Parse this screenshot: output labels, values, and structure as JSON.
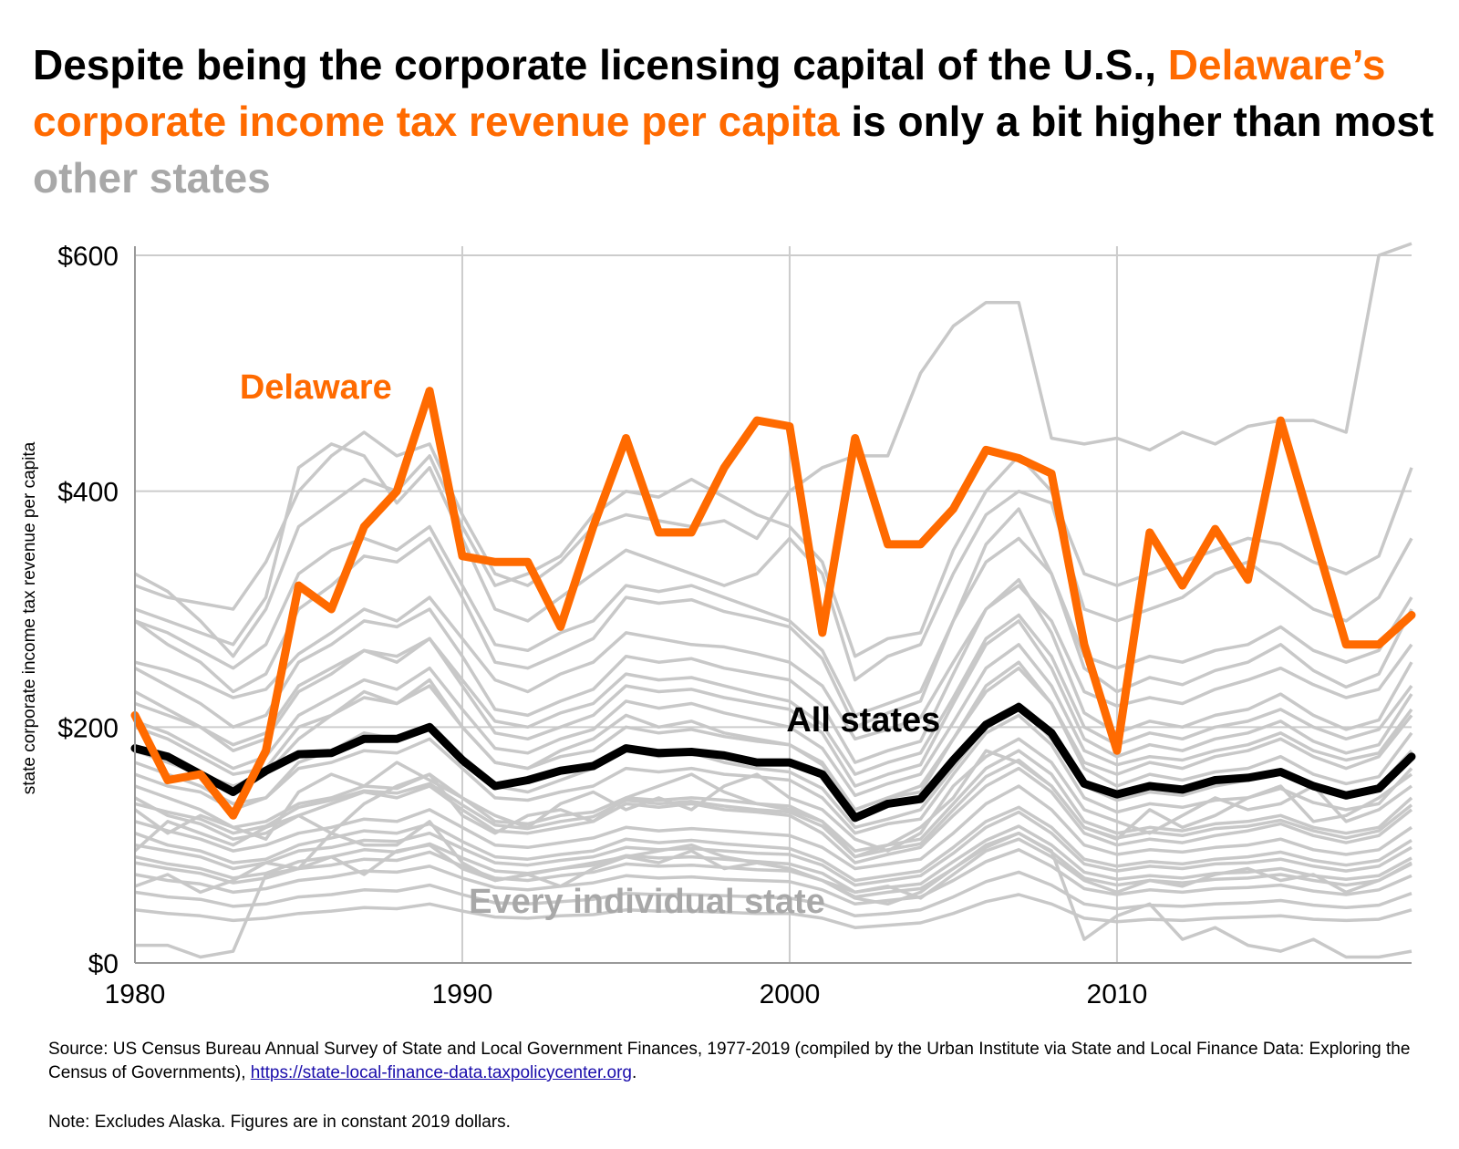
{
  "title": {
    "part1": "Despite being the corporate licensing capital of the U.S., ",
    "part2": "Delaware’s corporate income tax revenue per capita",
    "part3": " is only a bit higher than most ",
    "part4": "other states"
  },
  "colors": {
    "delaware": "#ff6a00",
    "all_states": "#000000",
    "other_states": "#c8c8c8",
    "highlight_gray": "#a8a8a8",
    "grid": "#cccccc"
  },
  "chart_data": {
    "type": "line",
    "ylabel": "state corporate income tax revenue per capita",
    "xlim": [
      1980,
      2019
    ],
    "ylim": [
      0,
      600
    ],
    "x_ticks": [
      "1980",
      "1990",
      "2000",
      "2010"
    ],
    "y_ticks": [
      "$0",
      "$200",
      "$400",
      "$600"
    ],
    "grid": true,
    "annotations": [
      {
        "text": "Delaware",
        "series": "Delaware"
      },
      {
        "text": "All states",
        "series": "All states"
      },
      {
        "text": "Every individual state",
        "series": "individual states"
      }
    ],
    "x": [
      1980,
      1981,
      1982,
      1983,
      1984,
      1985,
      1986,
      1987,
      1988,
      1989,
      1990,
      1991,
      1992,
      1993,
      1994,
      1995,
      1996,
      1997,
      1998,
      1999,
      2000,
      2001,
      2002,
      2003,
      2004,
      2005,
      2006,
      2007,
      2008,
      2009,
      2010,
      2011,
      2012,
      2013,
      2014,
      2015,
      2016,
      2017,
      2018,
      2019
    ],
    "series": [
      {
        "name": "Delaware",
        "values": [
          210,
          155,
          160,
          125,
          180,
          320,
          300,
          370,
          400,
          485,
          345,
          340,
          340,
          285,
          370,
          445,
          365,
          365,
          420,
          460,
          455,
          280,
          445,
          355,
          355,
          385,
          435,
          428,
          415,
          270,
          180,
          365,
          320,
          368,
          325,
          460,
          365,
          270,
          270,
          295
        ]
      },
      {
        "name": "All states",
        "values": [
          182,
          175,
          160,
          145,
          163,
          177,
          178,
          190,
          190,
          200,
          172,
          150,
          155,
          163,
          167,
          182,
          178,
          179,
          176,
          170,
          170,
          160,
          123,
          135,
          139,
          172,
          202,
          217,
          195,
          152,
          143,
          150,
          147,
          155,
          157,
          162,
          150,
          142,
          148,
          175
        ]
      }
    ],
    "background_series": [
      [
        150,
        140,
        130,
        115,
        120,
        135,
        140,
        150,
        148,
        160,
        140,
        120,
        118,
        125,
        128,
        140,
        138,
        140,
        138,
        135,
        133,
        120,
        95,
        100,
        105,
        135,
        165,
        180,
        160,
        120,
        110,
        115,
        112,
        118,
        120,
        125,
        115,
        110,
        115,
        140
      ],
      [
        120,
        112,
        105,
        95,
        100,
        110,
        115,
        122,
        120,
        130,
        115,
        100,
        98,
        102,
        106,
        115,
        112,
        114,
        112,
        110,
        108,
        98,
        80,
        84,
        88,
        110,
        135,
        150,
        130,
        100,
        92,
        96,
        94,
        98,
        100,
        105,
        96,
        92,
        96,
        115
      ],
      [
        100,
        95,
        90,
        80,
        85,
        95,
        98,
        104,
        103,
        110,
        97,
        85,
        83,
        87,
        90,
        98,
        96,
        97,
        95,
        93,
        92,
        83,
        66,
        70,
        74,
        93,
        115,
        128,
        110,
        84,
        78,
        82,
        80,
        84,
        85,
        88,
        82,
        78,
        82,
        98
      ],
      [
        85,
        80,
        76,
        68,
        72,
        80,
        83,
        88,
        87,
        94,
        82,
        72,
        70,
        74,
        77,
        84,
        82,
        83,
        81,
        79,
        78,
        70,
        56,
        60,
        63,
        80,
        98,
        110,
        94,
        72,
        66,
        70,
        68,
        71,
        72,
        75,
        70,
        66,
        70,
        84
      ],
      [
        170,
        160,
        150,
        135,
        140,
        165,
        170,
        180,
        178,
        190,
        165,
        140,
        138,
        145,
        150,
        165,
        162,
        165,
        160,
        158,
        155,
        140,
        110,
        118,
        122,
        160,
        195,
        210,
        185,
        140,
        128,
        135,
        132,
        138,
        140,
        148,
        136,
        130,
        135,
        165
      ],
      [
        200,
        190,
        175,
        160,
        165,
        200,
        210,
        225,
        220,
        235,
        200,
        170,
        165,
        175,
        180,
        200,
        195,
        198,
        192,
        188,
        185,
        168,
        130,
        140,
        145,
        190,
        235,
        255,
        220,
        165,
        150,
        160,
        155,
        162,
        165,
        175,
        160,
        152,
        158,
        195
      ],
      [
        230,
        215,
        200,
        180,
        190,
        230,
        245,
        265,
        260,
        275,
        235,
        195,
        190,
        200,
        210,
        235,
        230,
        232,
        225,
        220,
        215,
        195,
        150,
        160,
        168,
        220,
        270,
        290,
        250,
        190,
        175,
        185,
        180,
        190,
        195,
        205,
        188,
        178,
        185,
        228
      ],
      [
        140,
        125,
        118,
        105,
        110,
        125,
        135,
        145,
        140,
        150,
        130,
        112,
        110,
        115,
        120,
        135,
        132,
        135,
        130,
        128,
        125,
        110,
        85,
        92,
        98,
        125,
        150,
        165,
        145,
        110,
        100,
        105,
        102,
        108,
        112,
        118,
        108,
        102,
        108,
        130
      ],
      [
        110,
        100,
        95,
        85,
        88,
        100,
        106,
        112,
        110,
        118,
        103,
        90,
        88,
        92,
        95,
        105,
        102,
        104,
        101,
        99,
        97,
        87,
        70,
        74,
        78,
        98,
        120,
        132,
        115,
        88,
        82,
        86,
        84,
        88,
        90,
        94,
        87,
        83,
        87,
        104
      ],
      [
        75,
        70,
        67,
        60,
        63,
        70,
        73,
        78,
        77,
        82,
        72,
        64,
        62,
        65,
        68,
        74,
        72,
        73,
        71,
        70,
        69,
        62,
        50,
        53,
        56,
        70,
        86,
        96,
        82,
        63,
        58,
        62,
        60,
        63,
        64,
        66,
        61,
        58,
        62,
        74
      ],
      [
        60,
        56,
        54,
        48,
        50,
        56,
        58,
        62,
        61,
        66,
        58,
        51,
        50,
        52,
        54,
        59,
        58,
        58,
        57,
        56,
        55,
        50,
        40,
        42,
        45,
        56,
        69,
        77,
        66,
        50,
        46,
        49,
        48,
        50,
        51,
        53,
        49,
        47,
        49,
        59
      ],
      [
        250,
        235,
        220,
        200,
        210,
        255,
        270,
        290,
        285,
        300,
        260,
        215,
        210,
        222,
        232,
        260,
        255,
        258,
        250,
        245,
        240,
        218,
        170,
        180,
        188,
        245,
        300,
        325,
        280,
        212,
        195,
        205,
        200,
        210,
        215,
        228,
        210,
        198,
        206,
        255
      ],
      [
        290,
        270,
        255,
        230,
        245,
        300,
        320,
        345,
        340,
        360,
        310,
        255,
        250,
        262,
        275,
        310,
        305,
        308,
        298,
        292,
        285,
        258,
        200,
        212,
        222,
        290,
        355,
        385,
        330,
        250,
        230,
        242,
        236,
        248,
        255,
        270,
        248,
        234,
        245,
        300
      ],
      [
        95,
        120,
        110,
        100,
        115,
        125,
        110,
        135,
        150,
        160,
        125,
        110,
        125,
        130,
        120,
        140,
        150,
        160,
        145,
        135,
        130,
        120,
        90,
        100,
        115,
        140,
        180,
        170,
        150,
        115,
        105,
        130,
        115,
        125,
        140,
        150,
        120,
        125,
        140,
        160
      ],
      [
        130,
        110,
        125,
        115,
        105,
        145,
        160,
        150,
        170,
        155,
        140,
        125,
        115,
        135,
        145,
        130,
        140,
        130,
        150,
        160,
        140,
        130,
        105,
        95,
        110,
        150,
        175,
        190,
        170,
        130,
        120,
        110,
        125,
        140,
        130,
        135,
        150,
        120,
        130,
        150
      ],
      [
        65,
        75,
        60,
        70,
        85,
        80,
        90,
        75,
        95,
        100,
        80,
        70,
        75,
        65,
        80,
        90,
        85,
        95,
        80,
        85,
        80,
        70,
        60,
        65,
        55,
        75,
        95,
        105,
        90,
        70,
        60,
        70,
        65,
        75,
        80,
        70,
        75,
        60,
        70,
        85
      ],
      [
        330,
        315,
        290,
        260,
        300,
        370,
        390,
        410,
        400,
        430,
        370,
        320,
        330,
        345,
        380,
        400,
        395,
        410,
        395,
        380,
        370,
        340,
        260,
        275,
        280,
        350,
        400,
        430,
        400,
        330,
        320,
        330,
        340,
        350,
        360,
        355,
        340,
        330,
        345,
        420
      ],
      [
        300,
        290,
        280,
        270,
        310,
        420,
        440,
        430,
        390,
        420,
        360,
        300,
        290,
        310,
        330,
        350,
        340,
        330,
        320,
        330,
        360,
        330,
        240,
        260,
        270,
        330,
        380,
        400,
        390,
        300,
        290,
        300,
        310,
        330,
        340,
        320,
        300,
        290,
        310,
        360
      ],
      [
        180,
        170,
        160,
        150,
        160,
        190,
        210,
        230,
        220,
        240,
        200,
        170,
        165,
        180,
        190,
        210,
        200,
        205,
        195,
        190,
        185,
        170,
        130,
        140,
        150,
        190,
        230,
        250,
        220,
        170,
        160,
        170,
        165,
        175,
        180,
        190,
        175,
        165,
        175,
        210
      ],
      [
        160,
        150,
        145,
        130,
        140,
        170,
        180,
        195,
        190,
        200,
        175,
        150,
        145,
        155,
        165,
        180,
        175,
        178,
        170,
        165,
        162,
        148,
        115,
        122,
        130,
        165,
        200,
        220,
        190,
        150,
        138,
        145,
        142,
        150,
        155,
        160,
        148,
        140,
        150,
        180
      ],
      [
        290,
        280,
        265,
        250,
        270,
        330,
        350,
        360,
        350,
        370,
        320,
        270,
        265,
        280,
        290,
        320,
        315,
        320,
        310,
        300,
        290,
        265,
        210,
        220,
        230,
        290,
        340,
        360,
        330,
        260,
        250,
        260,
        255,
        265,
        270,
        285,
        265,
        255,
        265,
        310
      ],
      [
        220,
        210,
        200,
        185,
        195,
        235,
        250,
        265,
        255,
        275,
        240,
        205,
        200,
        212,
        220,
        245,
        240,
        242,
        235,
        228,
        222,
        202,
        160,
        170,
        178,
        225,
        275,
        295,
        260,
        200,
        185,
        195,
        190,
        200,
        205,
        215,
        200,
        190,
        198,
        235
      ],
      [
        45,
        42,
        40,
        36,
        38,
        42,
        44,
        47,
        46,
        50,
        44,
        39,
        38,
        40,
        41,
        45,
        44,
        44,
        43,
        42,
        42,
        38,
        30,
        32,
        34,
        42,
        52,
        58,
        50,
        38,
        35,
        37,
        36,
        38,
        39,
        40,
        37,
        36,
        37,
        45
      ],
      [
        15,
        15,
        5,
        10,
        75,
        80,
        110,
        100,
        100,
        120,
        85,
        70,
        75,
        80,
        85,
        90,
        95,
        100,
        90,
        85,
        80,
        70,
        55,
        50,
        60,
        80,
        100,
        110,
        95,
        20,
        40,
        50,
        20,
        30,
        15,
        10,
        20,
        5,
        5,
        10
      ],
      [
        205,
        195,
        180,
        165,
        175,
        210,
        225,
        240,
        232,
        250,
        215,
        182,
        178,
        190,
        198,
        222,
        216,
        220,
        212,
        206,
        200,
        182,
        142,
        152,
        160,
        204,
        250,
        270,
        235,
        180,
        168,
        175,
        172,
        180,
        185,
        195,
        180,
        172,
        178,
        215
      ],
      [
        255,
        248,
        238,
        225,
        232,
        262,
        280,
        300,
        290,
        310,
        275,
        240,
        230,
        245,
        255,
        280,
        275,
        270,
        268,
        262,
        255,
        235,
        190,
        198,
        208,
        255,
        300,
        320,
        290,
        230,
        218,
        225,
        220,
        232,
        240,
        250,
        236,
        225,
        232,
        270
      ],
      [
        135,
        128,
        122,
        110,
        116,
        132,
        138,
        146,
        144,
        152,
        134,
        117,
        114,
        120,
        124,
        138,
        135,
        137,
        133,
        130,
        128,
        116,
        90,
        96,
        101,
        130,
        158,
        172,
        150,
        115,
        106,
        111,
        108,
        114,
        116,
        121,
        112,
        106,
        112,
        134
      ],
      [
        320,
        310,
        305,
        300,
        340,
        400,
        430,
        450,
        430,
        440,
        380,
        330,
        320,
        340,
        370,
        380,
        375,
        370,
        375,
        360,
        400,
        420,
        430,
        430,
        500,
        540,
        560,
        560,
        445,
        440,
        445,
        435,
        450,
        440,
        455,
        460,
        460,
        450,
        600,
        610
      ],
      [
        90,
        84,
        80,
        72,
        76,
        86,
        90,
        96,
        94,
        101,
        89,
        78,
        76,
        80,
        83,
        91,
        89,
        90,
        88,
        86,
        84,
        76,
        60,
        64,
        67,
        86,
        104,
        116,
        100,
        77,
        71,
        74,
        72,
        76,
        77,
        80,
        74,
        71,
        74,
        89
      ]
    ]
  },
  "source": {
    "prefix": "Source: US Census Bureau Annual Survey of State and Local Government Finances, 1977-2019 (compiled by the Urban Institute via State and Local Finance Data: Exploring the Census of Governments), ",
    "link": "https://state-local-finance-data.taxpolicycenter.org",
    "suffix": "."
  },
  "note": "Note: Excludes Alaska. Figures are in constant 2019 dollars."
}
